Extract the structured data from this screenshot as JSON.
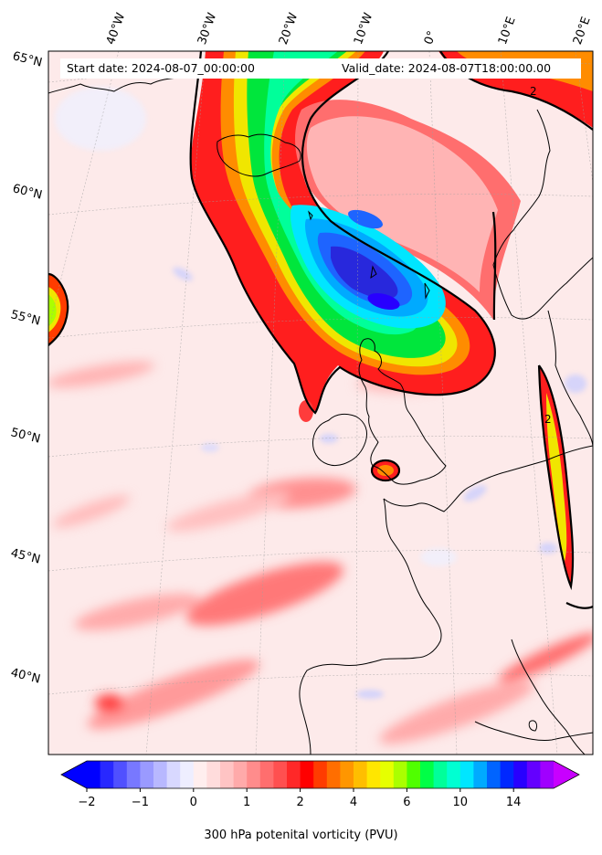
{
  "map": {
    "projection": "conic",
    "region": "North Atlantic and Western Europe",
    "field": "300 hPa potential vorticity",
    "info": {
      "start_date": "Start date: 2024-08-07_00:00:00",
      "valid_date": "Valid_date: 2024-08-07T18:00:00.00"
    },
    "latitude_labels": [
      "65°N",
      "60°N",
      "55°N",
      "50°N",
      "45°N",
      "40°N"
    ],
    "longitude_labels": [
      "40°W",
      "30°W",
      "20°W",
      "10°W",
      "0°",
      "10°E",
      "20°E"
    ],
    "contour_labels": [
      "2",
      "2"
    ],
    "colors": {
      "background_pv": "#fde8e8",
      "low_pv": "#c8ccff",
      "ridge_red": "#ff1e1e",
      "orange": "#ff8c00",
      "yellow": "#f0e600",
      "green": "#00e63c",
      "cyan": "#00e6ff",
      "blue": "#1e64ff",
      "deep_blue": "#2828dc",
      "coastline": "#000000"
    }
  },
  "colorbar": {
    "label": "300 hPa potenital vorticity (PVU)",
    "tick_labels": [
      "−2",
      "−1",
      "0",
      "1",
      "2",
      "4",
      "6",
      "10",
      "14"
    ],
    "tick_values": [
      -2,
      -1,
      0,
      1,
      2,
      4,
      6,
      10,
      14
    ],
    "bin_colors": [
      "#0000ff",
      "#2828ff",
      "#5050ff",
      "#7878ff",
      "#9a9aff",
      "#b8b8ff",
      "#d8d8ff",
      "#eeeeff",
      "#ffeeee",
      "#ffdcdc",
      "#ffc4c4",
      "#ffaaaa",
      "#ff8c8c",
      "#ff6e6e",
      "#ff5050",
      "#ff2828",
      "#ff0000",
      "#ff3c00",
      "#ff6e00",
      "#ff9600",
      "#ffbe00",
      "#ffe600",
      "#e6ff00",
      "#aaff00",
      "#50ff00",
      "#00ff46",
      "#00ff9a",
      "#00ffd2",
      "#00e6ff",
      "#00aaff",
      "#0064ff",
      "#0028ff",
      "#2800ff",
      "#6400ff",
      "#a000ff"
    ],
    "extend": "both"
  }
}
